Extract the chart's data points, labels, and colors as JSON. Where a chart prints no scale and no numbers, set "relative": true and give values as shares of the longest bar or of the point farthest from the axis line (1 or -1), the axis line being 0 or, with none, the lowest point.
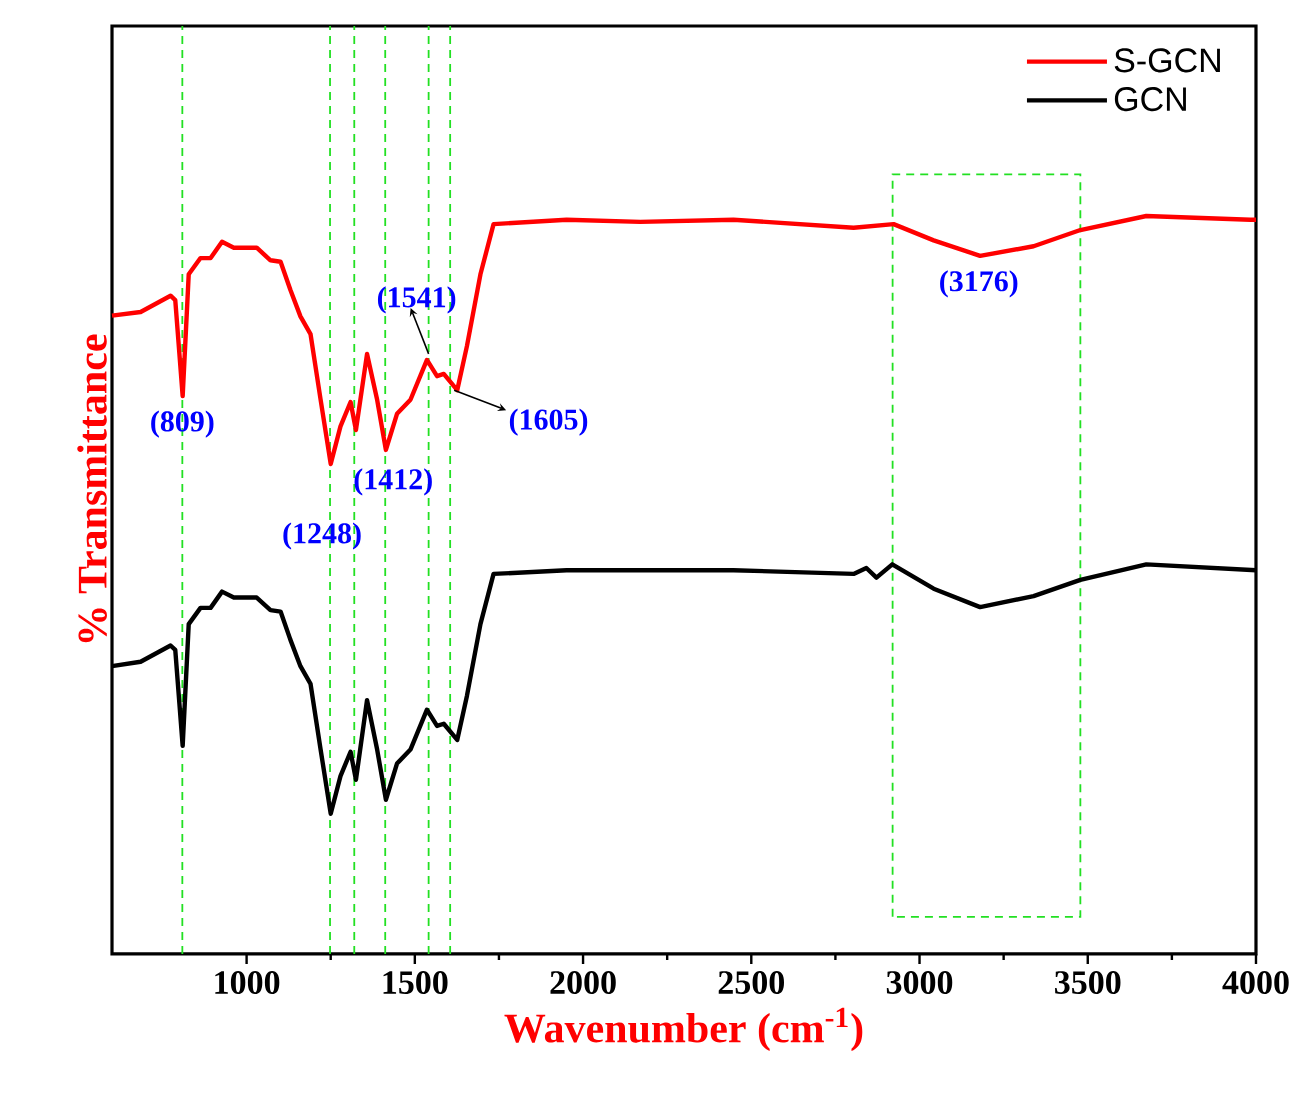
{
  "chart_data": {
    "type": "line",
    "relative": true,
    "xlabel": "Wavenumber (cm$^{-1}$)",
    "ylabel": "% Transmittance",
    "xlim": [
      600,
      4000
    ],
    "xticks": [
      1000,
      1500,
      2000,
      2500,
      3000,
      3500,
      4000
    ],
    "tick_labels": "x",
    "legend": "top right",
    "series": [
      {
        "name": "S-GCN",
        "color": "#ff0000",
        "x": [
          600,
          685,
          774,
          788,
          810,
          828,
          863,
          893,
          927,
          962,
          1030,
          1071,
          1101,
          1130,
          1160,
          1190,
          1220,
          1250,
          1279,
          1309,
          1325,
          1358,
          1388,
          1414,
          1447,
          1487,
          1536,
          1566,
          1586,
          1626,
          1655,
          1695,
          1734,
          1951,
          2170,
          2447,
          2804,
          2923,
          3042,
          3180,
          3339,
          3478,
          3674,
          3983,
          4000
        ],
        "values": [
          0.865,
          0.87,
          0.892,
          0.886,
          0.756,
          0.921,
          0.943,
          0.943,
          0.965,
          0.957,
          0.957,
          0.94,
          0.938,
          0.9,
          0.864,
          0.84,
          0.751,
          0.664,
          0.715,
          0.748,
          0.71,
          0.813,
          0.751,
          0.683,
          0.732,
          0.751,
          0.805,
          0.783,
          0.786,
          0.764,
          0.824,
          0.921,
          0.989,
          0.995,
          0.992,
          0.995,
          0.984,
          0.989,
          0.967,
          0.946,
          0.959,
          0.981,
          1.0,
          0.995,
          0.995
        ]
      },
      {
        "name": "GCN",
        "color": "#000000",
        "x": [
          600,
          685,
          774,
          788,
          810,
          828,
          863,
          893,
          927,
          962,
          1030,
          1071,
          1101,
          1130,
          1160,
          1190,
          1220,
          1250,
          1279,
          1309,
          1325,
          1358,
          1388,
          1414,
          1447,
          1487,
          1536,
          1566,
          1586,
          1626,
          1655,
          1695,
          1734,
          1951,
          2447,
          2804,
          2842,
          2872,
          2919,
          3042,
          3180,
          3339,
          3478,
          3674,
          4000
        ],
        "values": [
          0.39,
          0.396,
          0.418,
          0.412,
          0.282,
          0.447,
          0.469,
          0.469,
          0.491,
          0.483,
          0.483,
          0.466,
          0.464,
          0.426,
          0.39,
          0.366,
          0.277,
          0.19,
          0.241,
          0.274,
          0.236,
          0.344,
          0.277,
          0.209,
          0.258,
          0.277,
          0.331,
          0.309,
          0.312,
          0.29,
          0.35,
          0.447,
          0.515,
          0.52,
          0.52,
          0.515,
          0.523,
          0.51,
          0.528,
          0.495,
          0.47,
          0.485,
          0.507,
          0.528,
          0.52
        ]
      }
    ],
    "ref_lines": [
      {
        "axis": "x",
        "value": 809,
        "color": "#22e022",
        "line_style": "dashed"
      },
      {
        "axis": "x",
        "value": 1248,
        "color": "#22e022",
        "line_style": "dashed"
      },
      {
        "axis": "x",
        "value": 1320,
        "color": "#22e022",
        "line_style": "dashed"
      },
      {
        "axis": "x",
        "value": 1412,
        "color": "#22e022",
        "line_style": "dashed"
      },
      {
        "axis": "x",
        "value": 1541,
        "color": "#22e022",
        "line_style": "dashed"
      },
      {
        "axis": "x",
        "value": 1605,
        "color": "#22e022",
        "line_style": "dashed"
      }
    ],
    "bands": [
      {
        "axis": "x",
        "from": 2920,
        "to": 3478,
        "color": "#22e022"
      }
    ],
    "annotations": [
      {
        "text": "(809)",
        "x": 809,
        "y": 0.756
      },
      {
        "text": "(1248)",
        "x": 1248,
        "y": 0.664
      },
      {
        "text": "(1412)",
        "x": 1412,
        "y": 0.683
      },
      {
        "text": "(1541)",
        "x": 1541,
        "y": 0.805
      },
      {
        "text": "(1605)",
        "x": 1605,
        "y": 0.764
      },
      {
        "text": "(3176)",
        "x": 3176,
        "y": 0.946
      }
    ]
  }
}
